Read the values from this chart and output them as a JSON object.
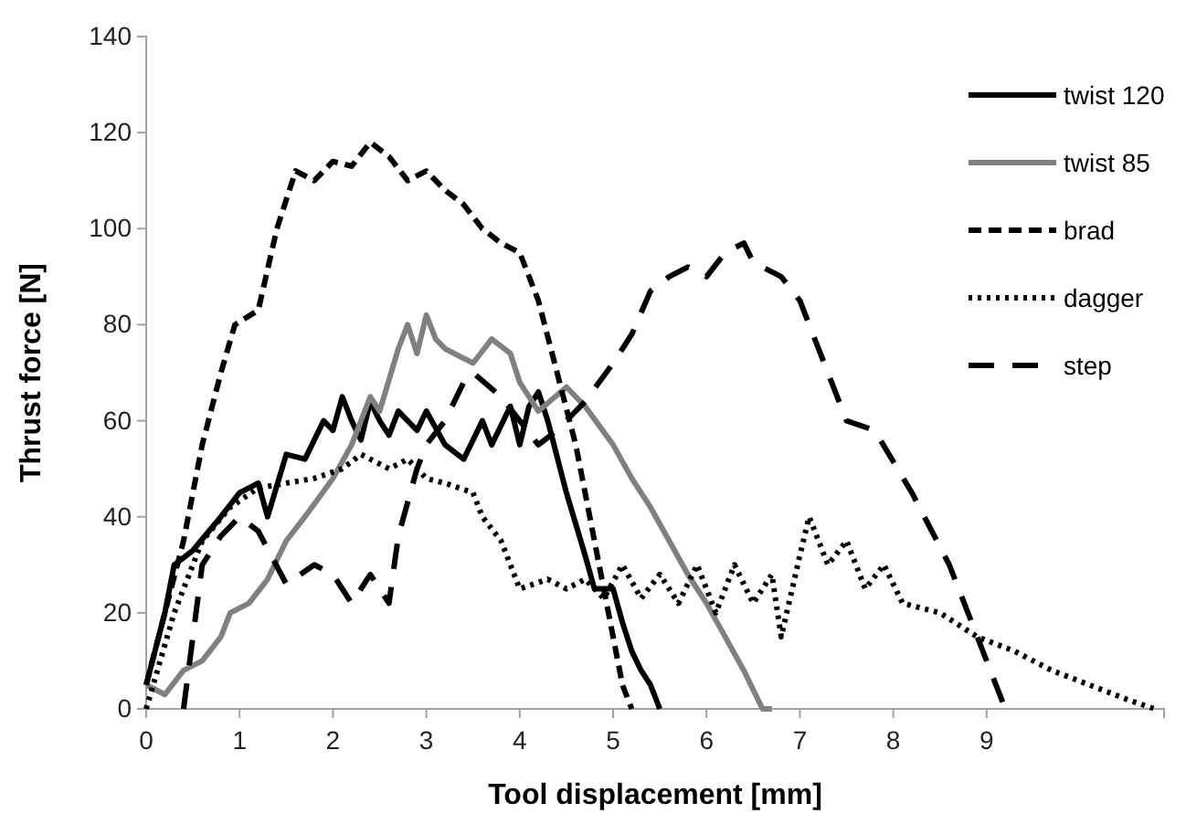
{
  "chart_data": {
    "type": "line",
    "xlabel": "Tool displacement [mm]",
    "ylabel": "Thrust force [N]",
    "xlim": [
      0,
      10.9
    ],
    "xticks": [
      0,
      1,
      2,
      3,
      4,
      5,
      6,
      7,
      8,
      9
    ],
    "ylim": [
      0,
      140
    ],
    "yticks": [
      0,
      20,
      40,
      60,
      80,
      100,
      120,
      140
    ],
    "grid": false,
    "legend": "right",
    "marker": "none",
    "series": [
      {
        "name": "twist 120",
        "color": "#000000",
        "line_style": "solid",
        "x": [
          0,
          0.2,
          0.3,
          0.5,
          0.8,
          1.0,
          1.2,
          1.3,
          1.5,
          1.7,
          1.9,
          2.0,
          2.1,
          2.2,
          2.3,
          2.4,
          2.5,
          2.6,
          2.7,
          2.9,
          3.0,
          3.2,
          3.4,
          3.6,
          3.7,
          3.9,
          4.0,
          4.1,
          4.2,
          4.3,
          4.5,
          4.7,
          4.8,
          5.0,
          5.1,
          5.2,
          5.3,
          5.4,
          5.5
        ],
        "values": [
          5,
          20,
          30,
          33,
          40,
          45,
          47,
          40,
          53,
          52,
          60,
          58,
          65,
          60,
          56,
          64,
          60,
          57,
          62,
          58,
          62,
          55,
          52,
          60,
          55,
          63,
          55,
          63,
          66,
          60,
          45,
          32,
          25,
          25,
          18,
          12,
          8,
          5,
          0
        ]
      },
      {
        "name": "twist 85",
        "color": "#808080",
        "line_style": "solid",
        "x": [
          0,
          0.2,
          0.4,
          0.6,
          0.8,
          0.9,
          1.1,
          1.3,
          1.5,
          1.7,
          2.0,
          2.2,
          2.4,
          2.5,
          2.7,
          2.8,
          2.9,
          3.0,
          3.1,
          3.2,
          3.5,
          3.7,
          3.9,
          4.0,
          4.2,
          4.5,
          4.7,
          5.0,
          5.2,
          5.4,
          5.6,
          5.8,
          6.0,
          6.2,
          6.4,
          6.6,
          6.7
        ],
        "values": [
          5,
          3,
          8,
          10,
          15,
          20,
          22,
          27,
          35,
          40,
          48,
          55,
          65,
          62,
          75,
          80,
          74,
          82,
          77,
          75,
          72,
          77,
          74,
          68,
          62,
          67,
          63,
          55,
          48,
          42,
          35,
          28,
          22,
          15,
          8,
          0,
          0
        ]
      },
      {
        "name": "brad",
        "color": "#000000",
        "line_style": "dashed",
        "x": [
          0,
          0.2,
          0.4,
          0.6,
          0.8,
          0.95,
          1.2,
          1.4,
          1.6,
          1.8,
          2.0,
          2.2,
          2.4,
          2.6,
          2.8,
          3.0,
          3.2,
          3.4,
          3.6,
          3.8,
          4.0,
          4.2,
          4.4,
          4.6,
          4.8,
          5.0,
          5.1,
          5.2
        ],
        "values": [
          5,
          20,
          35,
          55,
          70,
          80,
          83,
          100,
          112,
          110,
          114,
          113,
          118,
          115,
          110,
          112,
          108,
          105,
          100,
          97,
          95,
          85,
          70,
          55,
          35,
          15,
          5,
          0
        ]
      },
      {
        "name": "dagger",
        "color": "#000000",
        "line_style": "dotted",
        "x": [
          0,
          0.3,
          0.6,
          0.9,
          1.2,
          1.5,
          1.8,
          2.1,
          2.3,
          2.6,
          2.8,
          3.0,
          3.2,
          3.5,
          3.6,
          3.8,
          4.0,
          4.3,
          4.5,
          4.7,
          4.9,
          5.1,
          5.3,
          5.5,
          5.7,
          5.9,
          6.1,
          6.3,
          6.5,
          6.7,
          6.8,
          7.0,
          7.1,
          7.3,
          7.5,
          7.7,
          7.9,
          8.1,
          8.5,
          8.9,
          9.3,
          9.7,
          10.1,
          10.5,
          10.8
        ],
        "values": [
          0,
          20,
          35,
          42,
          46,
          47,
          48,
          50,
          53,
          50,
          52,
          48,
          47,
          45,
          40,
          35,
          25,
          27,
          25,
          27,
          23,
          30,
          23,
          28,
          22,
          30,
          20,
          30,
          22,
          28,
          15,
          32,
          40,
          30,
          35,
          25,
          30,
          22,
          20,
          15,
          12,
          8,
          5,
          2,
          0
        ]
      },
      {
        "name": "step",
        "color": "#000000",
        "line_style": "longdash",
        "x": [
          0.4,
          0.5,
          0.6,
          0.8,
          1.0,
          1.2,
          1.5,
          1.8,
          2.0,
          2.2,
          2.4,
          2.6,
          2.7,
          2.9,
          3.0,
          3.2,
          3.4,
          3.5,
          3.8,
          4.0,
          4.2,
          4.4,
          4.7,
          5.0,
          5.2,
          5.4,
          5.6,
          5.8,
          6.0,
          6.2,
          6.4,
          6.5,
          6.8,
          7.0,
          7.2,
          7.5,
          7.8,
          8.2,
          8.6,
          8.9,
          9.1,
          9.2
        ],
        "values": [
          0,
          15,
          30,
          36,
          40,
          37,
          26,
          30,
          28,
          22,
          28,
          22,
          36,
          50,
          55,
          60,
          68,
          70,
          65,
          60,
          55,
          58,
          64,
          72,
          78,
          87,
          90,
          92,
          90,
          95,
          97,
          93,
          90,
          85,
          75,
          60,
          58,
          45,
          30,
          15,
          5,
          0
        ]
      }
    ]
  }
}
